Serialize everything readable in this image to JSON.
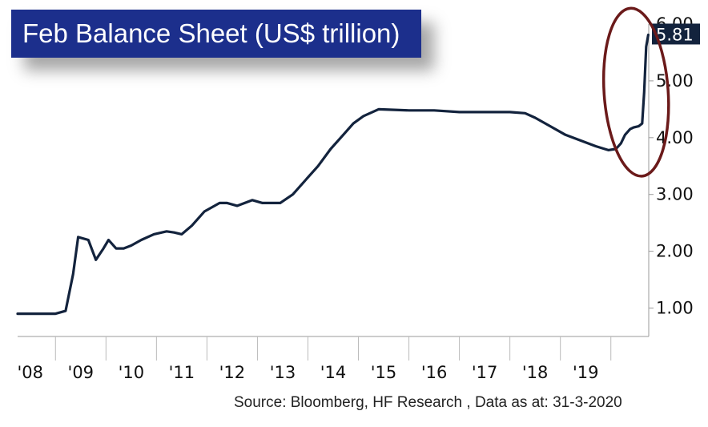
{
  "title": "Feb Balance Sheet (US$ trillion)",
  "source": "Source:  Bloomberg, HF Research , Data as at: 31-3-2020",
  "colors": {
    "title_bg": "#1c2f8c",
    "line": "#13233d",
    "ellipse": "#6b1a1a",
    "badge": "#13233d"
  },
  "chart_data": {
    "type": "line",
    "title": "Feb Balance Sheet (US$ trillion)",
    "xlabel": "",
    "ylabel": "",
    "ylim": [
      0.5,
      6.0
    ],
    "xlim": [
      2007.75,
      2020.25
    ],
    "x_ticks": [
      "'08",
      "'09",
      "'10",
      "'11",
      "'12",
      "'13",
      "'14",
      "'15",
      "'16",
      "'17",
      "'18",
      "'19"
    ],
    "y_ticks": [
      "1.00",
      "2.00",
      "3.00",
      "4.00",
      "5.00",
      "6.00"
    ],
    "last_value_label": "5.81",
    "annotation": "ellipse highlighting March 2020 spike",
    "series": [
      {
        "x": [
          2007.75,
          2008.2,
          2008.5,
          2008.7,
          2008.85,
          2008.95,
          2009.15,
          2009.3,
          2009.45,
          2009.55,
          2009.7,
          2009.85,
          2010.0,
          2010.2,
          2010.45,
          2010.7,
          2010.85,
          2011.0,
          2011.2,
          2011.45,
          2011.75,
          2011.9,
          2012.1,
          2012.4,
          2012.6,
          2012.75,
          2012.95,
          2013.2,
          2013.45,
          2013.7,
          2013.95,
          2014.2,
          2014.4,
          2014.6,
          2014.9,
          2015.5,
          2016.0,
          2016.5,
          2017.0,
          2017.5,
          2017.8,
          2018.0,
          2018.3,
          2018.6,
          2018.9,
          2019.2,
          2019.45,
          2019.6,
          2019.7,
          2019.78,
          2019.88,
          2019.95,
          2020.05,
          2020.12,
          2020.16,
          2020.2,
          2020.24
        ],
        "y": [
          0.9,
          0.9,
          0.9,
          0.95,
          1.6,
          2.25,
          2.2,
          1.85,
          2.05,
          2.2,
          2.05,
          2.05,
          2.1,
          2.2,
          2.3,
          2.35,
          2.33,
          2.3,
          2.45,
          2.7,
          2.85,
          2.85,
          2.8,
          2.9,
          2.85,
          2.85,
          2.85,
          3.0,
          3.25,
          3.5,
          3.8,
          4.05,
          4.25,
          4.38,
          4.5,
          4.48,
          4.48,
          4.45,
          4.45,
          4.45,
          4.43,
          4.35,
          4.2,
          4.05,
          3.95,
          3.85,
          3.78,
          3.8,
          3.9,
          4.05,
          4.15,
          4.18,
          4.2,
          4.25,
          4.8,
          5.6,
          5.81
        ]
      }
    ]
  }
}
